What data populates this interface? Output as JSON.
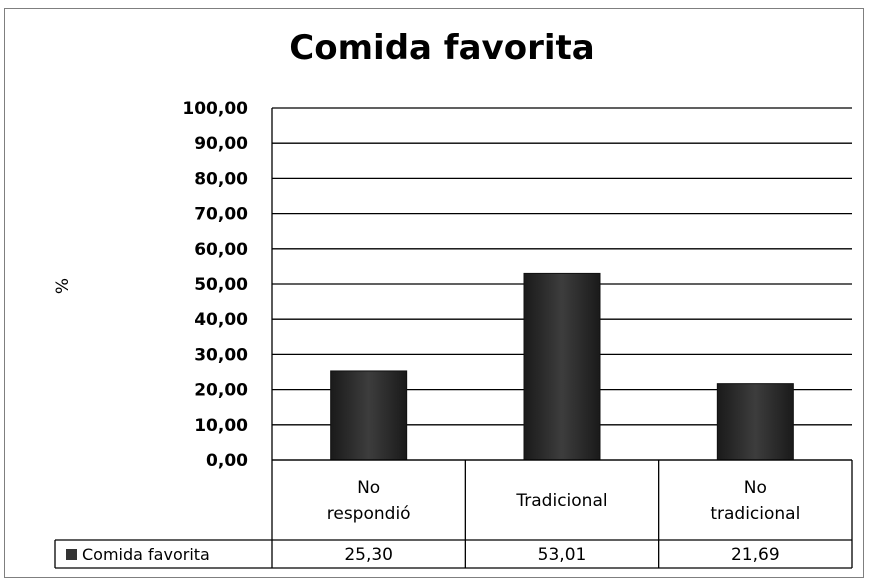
{
  "chart_data": {
    "type": "bar",
    "title": "Comida favorita",
    "ylabel": "%",
    "xlabel": "",
    "ylim": [
      0,
      100
    ],
    "yticks": [
      "0,00",
      "10,00",
      "20,00",
      "30,00",
      "40,00",
      "50,00",
      "60,00",
      "70,00",
      "80,00",
      "90,00",
      "100,00"
    ],
    "categories": [
      [
        "No",
        "respondió"
      ],
      [
        "Tradicional"
      ],
      [
        "No",
        "tradicional"
      ]
    ],
    "series": [
      {
        "name": "Comida favorita",
        "values": [
          25.3,
          53.01,
          21.69
        ],
        "labels": [
          "25,30",
          "53,01",
          "21,69"
        ],
        "color": "#333333"
      }
    ],
    "grid": true,
    "legend": "data-table-left",
    "data_table": true
  }
}
